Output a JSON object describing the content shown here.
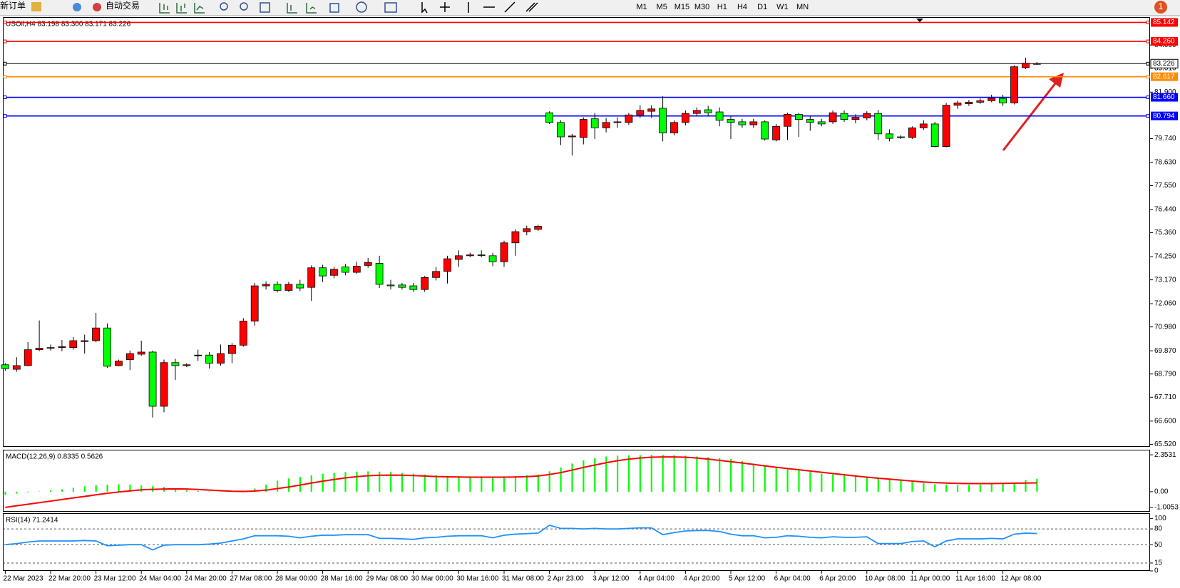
{
  "toolbar": {
    "new_order": "新订单",
    "auto_trading": "自动交易",
    "timeframes": [
      "M1",
      "M5",
      "M15",
      "M30",
      "H1",
      "H4",
      "D1",
      "W1",
      "MN"
    ],
    "badge": 1
  },
  "chart_data": [
    {
      "type": "candlestick",
      "title": "USOil,H4  83.198 83.300 83.171 83.226",
      "up_color": "#ff0000",
      "down_color": "#00ff00",
      "categories": [
        "22 Mar 2023",
        null,
        null,
        null,
        "22 Mar 20:00",
        null,
        null,
        null,
        "23 Mar 12:00",
        null,
        null,
        null,
        "24 Mar 04:00",
        null,
        null,
        null,
        "24 Mar 20:00",
        null,
        null,
        null,
        "27 Mar 08:00",
        null,
        null,
        null,
        "28 Mar 00:00",
        null,
        null,
        null,
        "28 Mar 16:00",
        null,
        null,
        null,
        "29 Mar 08:00",
        null,
        null,
        null,
        "30 Mar 00:00",
        null,
        null,
        null,
        "30 Mar 16:00",
        null,
        null,
        null,
        "31 Mar 08:00",
        null,
        null,
        null,
        "2 Apr 23:00",
        null,
        null,
        null,
        "3 Apr 12:00",
        null,
        null,
        null,
        "4 Apr 04:00",
        null,
        null,
        null,
        "4 Apr 20:00",
        null,
        null,
        null,
        "5 Apr 12:00",
        null,
        null,
        null,
        "6 Apr 04:00",
        null,
        null,
        null,
        "6 Apr 20:00",
        null,
        null,
        null,
        "10 Apr 08:00",
        null,
        null,
        null,
        "11 Apr 00:00",
        null,
        null,
        null,
        "11 Apr 16:00",
        null,
        null,
        null,
        "12 Apr 08:00",
        null,
        null,
        null
      ],
      "open": [
        69.22,
        69.01,
        69.18,
        69.92,
        69.99,
        70.02,
        70.02,
        70.3,
        70.34,
        70.93,
        69.18,
        69.46,
        69.71,
        69.81,
        67.29,
        69.32,
        69.18,
        69.67,
        69.67,
        69.29,
        69.74,
        70.13,
        71.25,
        72.89,
        72.96,
        72.68,
        72.96,
        72.82,
        73.73,
        73.38,
        73.77,
        73.52,
        73.84,
        73.94,
        72.93,
        72.93,
        72.89,
        72.72,
        73.28,
        73.56,
        74.12,
        74.29,
        74.33,
        74.29,
        74.01,
        74.89,
        75.41,
        75.52,
        80.94,
        80.49,
        79.82,
        79.79,
        80.66,
        80.24,
        80.49,
        80.49,
        80.84,
        81.01,
        81.15,
        80.0,
        80.49,
        80.91,
        81.08,
        80.98,
        80.63,
        80.52,
        80.38,
        80.52,
        79.68,
        80.31,
        80.87,
        80.63,
        80.52,
        80.52,
        80.91,
        80.63,
        80.7,
        80.91,
        79.96,
        79.82,
        79.79,
        80.24,
        80.42,
        79.37,
        81.29,
        81.36,
        81.43,
        81.5,
        81.61,
        81.4,
        83.04,
        83.198
      ],
      "high": [
        69.29,
        69.57,
        70.27,
        71.28,
        70.16,
        70.37,
        70.51,
        70.62,
        71.63,
        71.14,
        69.46,
        69.88,
        70.34,
        69.88,
        69.46,
        69.5,
        69.29,
        69.92,
        69.81,
        70.16,
        70.23,
        71.39,
        73.03,
        73.1,
        73.1,
        73.07,
        73.17,
        73.84,
        73.87,
        73.77,
        73.91,
        74.01,
        74.19,
        74.29,
        73.17,
        73.03,
        73.03,
        73.35,
        73.77,
        74.29,
        74.54,
        74.43,
        74.54,
        74.43,
        74.99,
        75.52,
        75.69,
        75.73,
        81.01,
        80.59,
        79.96,
        80.73,
        80.94,
        80.7,
        80.73,
        80.94,
        81.29,
        81.29,
        81.71,
        80.59,
        81.05,
        81.19,
        81.26,
        81.19,
        80.77,
        80.66,
        80.66,
        80.59,
        80.42,
        80.94,
        80.94,
        80.77,
        80.66,
        81.05,
        81.05,
        80.87,
        81.01,
        81.08,
        80.17,
        79.89,
        80.31,
        80.59,
        80.52,
        81.4,
        81.5,
        81.54,
        81.61,
        81.78,
        81.78,
        83.15,
        83.5,
        83.3
      ],
      "low": [
        68.94,
        68.9,
        69.15,
        69.85,
        69.88,
        69.85,
        69.92,
        69.74,
        70.27,
        69.08,
        69.15,
        68.97,
        69.64,
        66.77,
        67.01,
        68.52,
        69.11,
        69.39,
        69.04,
        69.18,
        69.29,
        70.06,
        71.04,
        72.72,
        72.58,
        72.61,
        72.65,
        72.19,
        73.07,
        73.24,
        73.38,
        73.45,
        73.73,
        72.79,
        72.72,
        72.72,
        72.61,
        72.61,
        73.14,
        73.0,
        73.77,
        74.22,
        74.22,
        73.8,
        73.77,
        74.29,
        75.24,
        75.45,
        80.42,
        79.44,
        78.95,
        79.47,
        79.72,
        80.03,
        80.24,
        80.38,
        80.7,
        80.7,
        79.61,
        79.89,
        80.35,
        80.77,
        80.77,
        80.31,
        79.72,
        80.24,
        80.24,
        79.65,
        79.61,
        79.68,
        79.82,
        80.1,
        80.31,
        80.42,
        80.52,
        80.45,
        80.59,
        79.68,
        79.61,
        79.72,
        79.72,
        80.14,
        79.33,
        79.33,
        81.12,
        81.26,
        81.36,
        81.43,
        81.26,
        81.33,
        82.97,
        83.171
      ],
      "close": [
        69.04,
        69.18,
        69.92,
        69.99,
        70.02,
        70.06,
        70.34,
        70.34,
        70.93,
        69.15,
        69.39,
        69.74,
        69.81,
        67.29,
        69.32,
        69.18,
        69.22,
        69.67,
        69.29,
        69.74,
        70.13,
        71.25,
        72.89,
        72.96,
        72.68,
        72.96,
        72.79,
        73.73,
        73.35,
        73.66,
        73.52,
        73.8,
        73.98,
        72.96,
        72.89,
        72.82,
        72.72,
        73.28,
        73.56,
        74.15,
        74.29,
        74.33,
        74.31,
        74.01,
        74.89,
        75.41,
        75.55,
        75.66,
        80.49,
        79.82,
        79.86,
        80.63,
        80.24,
        80.49,
        80.52,
        80.84,
        81.05,
        81.12,
        80.0,
        80.49,
        80.91,
        81.05,
        80.94,
        80.59,
        80.49,
        80.38,
        80.52,
        79.72,
        80.31,
        80.87,
        80.63,
        80.49,
        80.42,
        80.94,
        80.63,
        80.73,
        80.91,
        79.96,
        79.75,
        79.8,
        80.24,
        80.42,
        79.37,
        81.29,
        81.4,
        81.43,
        81.5,
        81.61,
        81.4,
        83.08,
        83.25,
        83.226
      ],
      "ylim": [
        65.4,
        85.39
      ],
      "yticks": [
        {
          "value": 84.09,
          "label": "84.090"
        },
        {
          "value": 83.01,
          "label": "83.010"
        },
        {
          "value": 81.9,
          "label": "81.900"
        },
        {
          "value": 79.74,
          "label": "79.740"
        },
        {
          "value": 78.63,
          "label": "78.630"
        },
        {
          "value": 77.55,
          "label": "77.550"
        },
        {
          "value": 76.44,
          "label": "76.440"
        },
        {
          "value": 75.36,
          "label": "75.360"
        },
        {
          "value": 74.25,
          "label": "74.250"
        },
        {
          "value": 73.17,
          "label": "73.170"
        },
        {
          "value": 72.06,
          "label": "72.060"
        },
        {
          "value": 70.98,
          "label": "70.980"
        },
        {
          "value": 69.87,
          "label": "69.870"
        },
        {
          "value": 68.79,
          "label": "68.790"
        },
        {
          "value": 67.71,
          "label": "67.710"
        },
        {
          "value": 66.6,
          "label": "66.600"
        },
        {
          "value": 65.52,
          "label": "65.520"
        }
      ],
      "levels": [
        {
          "value": 85.142,
          "color": "#ff0000"
        },
        {
          "value": 84.26,
          "label": "84.260",
          "color": "#ff0000"
        },
        {
          "value": 83.226,
          "color": "#000000"
        },
        {
          "value": 82.617,
          "color": "#ff8c00"
        },
        {
          "value": 81.66,
          "label": "81.660",
          "color": "#0000ff"
        },
        {
          "value": 80.794,
          "color": "#0000ff"
        }
      ]
    },
    {
      "type": "macd",
      "title": "MACD(12,26,9) 0.8335 0.5626",
      "series": [
        {
          "type": "bar",
          "color": "#00ff00",
          "values": [
            -0.2,
            -0.12,
            -0.05,
            0.02,
            0.08,
            0.15,
            0.25,
            0.35,
            0.42,
            0.45,
            0.48,
            0.45,
            0.4,
            0.35,
            0.3,
            0.2,
            0.1,
            0.05,
            0.02,
            0.01,
            0.02,
            0.05,
            0.2,
            0.45,
            0.7,
            0.85,
            0.95,
            1.05,
            1.15,
            1.2,
            1.25,
            1.28,
            1.3,
            1.28,
            1.25,
            1.2,
            1.15,
            1.1,
            1.05,
            1.0,
            1.0,
            0.98,
            0.98,
            0.97,
            0.98,
            1.0,
            1.05,
            1.1,
            1.3,
            1.55,
            1.8,
            2.0,
            2.15,
            2.25,
            2.3,
            2.32,
            2.33,
            2.35,
            2.35,
            2.33,
            2.3,
            2.25,
            2.2,
            2.15,
            2.1,
            1.95,
            1.8,
            1.65,
            1.55,
            1.45,
            1.35,
            1.25,
            1.15,
            1.1,
            1.05,
            1.0,
            0.95,
            0.9,
            0.85,
            0.75,
            0.65,
            0.55,
            0.48,
            0.45,
            0.42,
            0.42,
            0.45,
            0.48,
            0.52,
            0.6,
            0.75,
            0.8335
          ]
        },
        {
          "type": "line",
          "color": "#ff0000",
          "values": [
            -1.0,
            -0.9,
            -0.8,
            -0.7,
            -0.6,
            -0.5,
            -0.4,
            -0.3,
            -0.2,
            -0.1,
            -0.02,
            0.05,
            0.12,
            0.15,
            0.17,
            0.18,
            0.17,
            0.14,
            0.1,
            0.06,
            0.03,
            0.02,
            0.04,
            0.1,
            0.2,
            0.3,
            0.42,
            0.55,
            0.67,
            0.78,
            0.88,
            0.96,
            1.02,
            1.05,
            1.06,
            1.05,
            1.03,
            1.0,
            0.97,
            0.95,
            0.94,
            0.93,
            0.93,
            0.93,
            0.93,
            0.94,
            0.96,
            1.0,
            1.1,
            1.22,
            1.38,
            1.55,
            1.7,
            1.85,
            1.98,
            2.08,
            2.15,
            2.2,
            2.22,
            2.22,
            2.2,
            2.15,
            2.08,
            2.0,
            1.92,
            1.83,
            1.74,
            1.65,
            1.56,
            1.48,
            1.4,
            1.32,
            1.24,
            1.16,
            1.08,
            1.0,
            0.93,
            0.86,
            0.8,
            0.74,
            0.68,
            0.62,
            0.58,
            0.55,
            0.53,
            0.52,
            0.52,
            0.52,
            0.53,
            0.54,
            0.55,
            0.5626
          ]
        }
      ],
      "ylim": [
        -1.28,
        2.68
      ],
      "yticks": [
        2.3531,
        {
          "value": 0,
          "label": "0.00"
        },
        -1.0053
      ]
    },
    {
      "type": "line",
      "title": "RSI(14) 71.2414",
      "color": "#1e90ff",
      "values": [
        50,
        52,
        55,
        57,
        57,
        57,
        57,
        58,
        57,
        48,
        49,
        50,
        50,
        40,
        49,
        50,
        50,
        50,
        51,
        53,
        57,
        61,
        67,
        67,
        67,
        66,
        63,
        66,
        68,
        68,
        69,
        69,
        69,
        62,
        62,
        61,
        60,
        63,
        64,
        66,
        67,
        67,
        67,
        63,
        68,
        70,
        71,
        72,
        87,
        81,
        81,
        80,
        81,
        80,
        80,
        81,
        82,
        82,
        69,
        73,
        76,
        77,
        77,
        75,
        70,
        67,
        67,
        63,
        64,
        67,
        66,
        64,
        63,
        65,
        64,
        64,
        65,
        52,
        52,
        52,
        56,
        57,
        46,
        57,
        61,
        61,
        61,
        62,
        61,
        70,
        72,
        71.2414
      ],
      "ylim": [
        0,
        110
      ],
      "yticks": [
        100,
        80,
        50,
        15,
        0
      ],
      "levels": [
        80,
        50,
        15
      ]
    }
  ]
}
